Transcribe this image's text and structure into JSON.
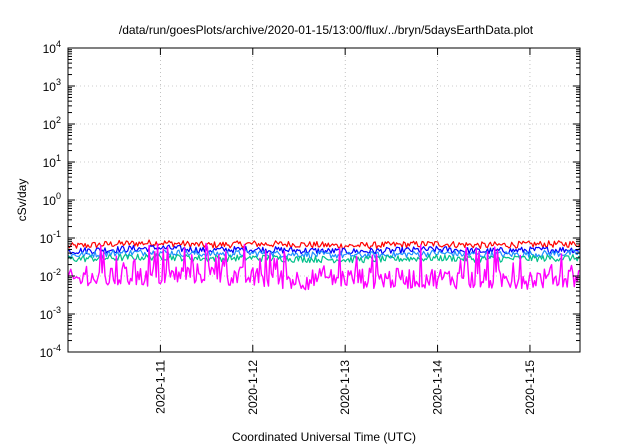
{
  "chart_data": {
    "type": "line",
    "title": "/data/run/goesPlots/archive/2020-01-15/13:00/flux/../bryn/5daysEarthData.plot",
    "xlabel": "Coordinated Universal Time (UTC)",
    "ylabel": "cSv/day",
    "yscale": "log",
    "ylim": [
      0.0001,
      10000
    ],
    "xlim": [
      "2020-01-10 00:00",
      "2020-01-15 13:00"
    ],
    "x_ticks": [
      "2020-1-11",
      "2020-1-12",
      "2020-1-13",
      "2020-1-14",
      "2020-1-15"
    ],
    "y_ticks": [
      {
        "value": 0.0001,
        "base": "10",
        "exp": "-4"
      },
      {
        "value": 0.001,
        "base": "10",
        "exp": "-3"
      },
      {
        "value": 0.01,
        "base": "10",
        "exp": "-2"
      },
      {
        "value": 0.1,
        "base": "10",
        "exp": "-1"
      },
      {
        "value": 1,
        "base": "10",
        "exp": "0"
      },
      {
        "value": 10,
        "base": "10",
        "exp": "1"
      },
      {
        "value": 100,
        "base": "10",
        "exp": "2"
      },
      {
        "value": 1000,
        "base": "10",
        "exp": "3"
      },
      {
        "value": 10000,
        "base": "10",
        "exp": "4"
      }
    ],
    "grid": true,
    "legend": "none",
    "series": [
      {
        "color": "#ff0000",
        "x": [
          "2020-01-10 00:00",
          "2020-01-10 12:00",
          "2020-01-11 00:00",
          "2020-01-11 12:00",
          "2020-01-12 00:00",
          "2020-01-12 12:00",
          "2020-01-13 00:00",
          "2020-01-13 12:00",
          "2020-01-14 00:00",
          "2020-01-14 12:00",
          "2020-01-15 00:00",
          "2020-01-15 13:00"
        ],
        "values": [
          0.06,
          0.07,
          0.075,
          0.065,
          0.07,
          0.068,
          0.062,
          0.066,
          0.07,
          0.064,
          0.068,
          0.07
        ]
      },
      {
        "color": "#0000ff",
        "x": [
          "2020-01-10 00:00",
          "2020-01-10 12:00",
          "2020-01-11 00:00",
          "2020-01-11 12:00",
          "2020-01-12 00:00",
          "2020-01-12 12:00",
          "2020-01-13 00:00",
          "2020-01-13 12:00",
          "2020-01-14 00:00",
          "2020-01-14 12:00",
          "2020-01-15 00:00",
          "2020-01-15 13:00"
        ],
        "values": [
          0.045,
          0.05,
          0.055,
          0.048,
          0.05,
          0.047,
          0.044,
          0.046,
          0.05,
          0.045,
          0.048,
          0.05
        ]
      },
      {
        "color": "#1e90ff",
        "x": [
          "2020-01-10 00:00",
          "2020-01-10 12:00",
          "2020-01-11 00:00",
          "2020-01-11 12:00",
          "2020-01-12 00:00",
          "2020-01-12 12:00",
          "2020-01-13 00:00",
          "2020-01-13 12:00",
          "2020-01-14 00:00",
          "2020-01-14 12:00",
          "2020-01-15 00:00",
          "2020-01-15 13:00"
        ],
        "values": [
          0.035,
          0.04,
          0.042,
          0.038,
          0.04,
          0.037,
          0.035,
          0.036,
          0.04,
          0.036,
          0.038,
          0.04
        ]
      },
      {
        "color": "#00c08a",
        "x": [
          "2020-01-10 00:00",
          "2020-01-10 12:00",
          "2020-01-11 00:00",
          "2020-01-11 12:00",
          "2020-01-12 00:00",
          "2020-01-12 12:00",
          "2020-01-13 00:00",
          "2020-01-13 12:00",
          "2020-01-14 00:00",
          "2020-01-14 12:00",
          "2020-01-15 00:00",
          "2020-01-15 13:00"
        ],
        "values": [
          0.028,
          0.03,
          0.032,
          0.029,
          0.03,
          0.028,
          0.027,
          0.028,
          0.03,
          0.028,
          0.029,
          0.03
        ]
      },
      {
        "color": "#ff00ff",
        "x": [
          "2020-01-10 00:00",
          "2020-01-10 12:00",
          "2020-01-11 00:00",
          "2020-01-11 12:00",
          "2020-01-12 00:00",
          "2020-01-12 12:00",
          "2020-01-13 00:00",
          "2020-01-13 12:00",
          "2020-01-14 00:00",
          "2020-01-14 12:00",
          "2020-01-15 00:00",
          "2020-01-15 13:00"
        ],
        "values": [
          0.008,
          0.009,
          0.01,
          0.012,
          0.009,
          0.008,
          0.009,
          0.0085,
          0.009,
          0.008,
          0.0085,
          0.009
        ]
      }
    ]
  }
}
